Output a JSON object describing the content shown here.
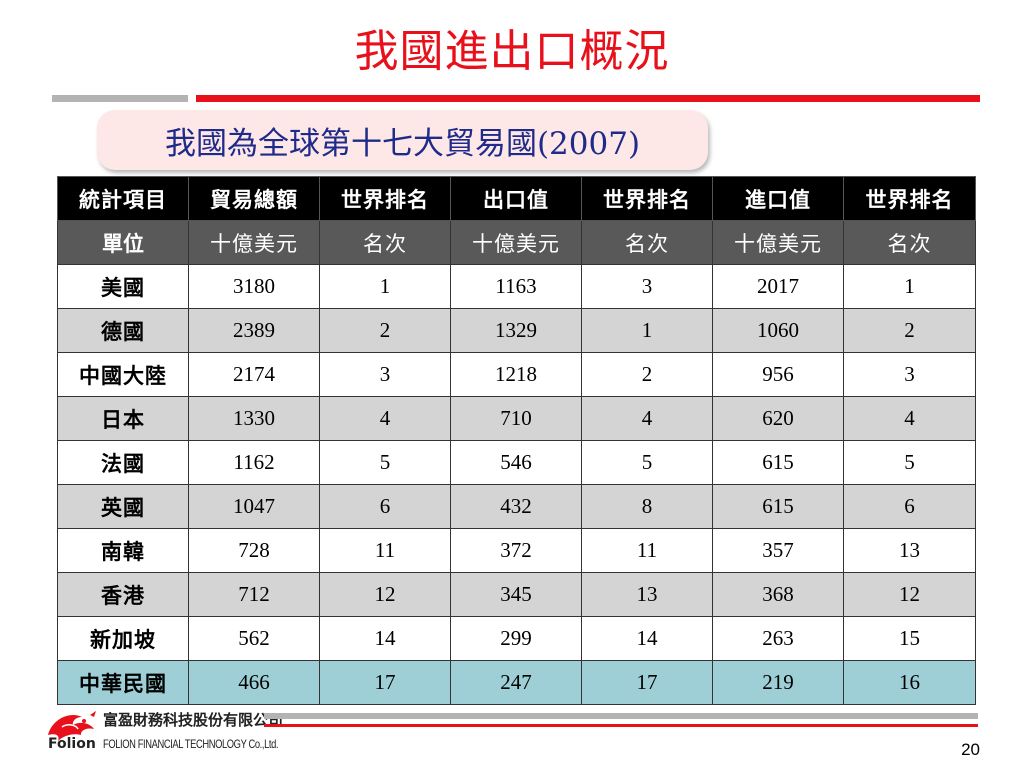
{
  "slide": {
    "title": "我國進出口概況",
    "subtitle": "我國為全球第十七大貿易國(2007)",
    "page_number": "20"
  },
  "table": {
    "headers": [
      "統計項目",
      "貿易總額",
      "世界排名",
      "出口值",
      "世界排名",
      "進口值",
      "世界排名"
    ],
    "units": [
      "單位",
      "十億美元",
      "名次",
      "十億美元",
      "名次",
      "十億美元",
      "名次"
    ],
    "rows": [
      [
        "美國",
        "3180",
        "1",
        "1163",
        "3",
        "2017",
        "1"
      ],
      [
        "德國",
        "2389",
        "2",
        "1329",
        "1",
        "1060",
        "2"
      ],
      [
        "中國大陸",
        "2174",
        "3",
        "1218",
        "2",
        "956",
        "3"
      ],
      [
        "日本",
        "1330",
        "4",
        "710",
        "4",
        "620",
        "4"
      ],
      [
        "法國",
        "1162",
        "5",
        "546",
        "5",
        "615",
        "5"
      ],
      [
        "英國",
        "1047",
        "6",
        "432",
        "8",
        "615",
        "6"
      ],
      [
        "南韓",
        "728",
        "11",
        "372",
        "11",
        "357",
        "13"
      ],
      [
        "香港",
        "712",
        "12",
        "345",
        "13",
        "368",
        "12"
      ],
      [
        "新加坡",
        "562",
        "14",
        "299",
        "14",
        "263",
        "15"
      ],
      [
        "中華民國",
        "466",
        "17",
        "247",
        "17",
        "219",
        "16"
      ]
    ]
  },
  "footer": {
    "brand": "Folion",
    "company_cn": "富盈財務科技股份有限公司",
    "company_en": "FOLION FINANCIAL TECHNOLOGY Co.,Ltd."
  },
  "colors": {
    "title_red": "#e8111b",
    "subtitle_blue": "#1f2b8a",
    "subtitle_bg": "#fde7e7",
    "header_black": "#000000",
    "unit_gray": "#595959",
    "row_gray": "#d4d4d4",
    "highlight_teal": "#9fcfd6"
  }
}
